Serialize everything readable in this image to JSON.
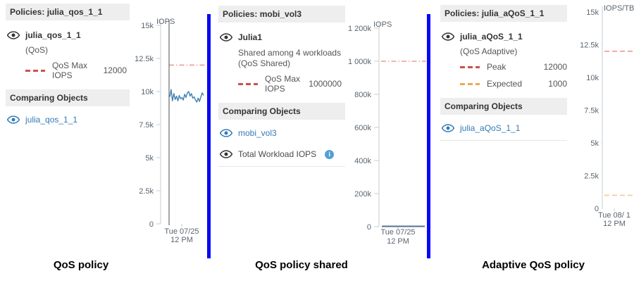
{
  "colors": {
    "band_bg": "#eeeeee",
    "link_blue": "#337ab7",
    "divider_blue": "#0707f5",
    "text_dark": "#333333",
    "text_body": "#555555",
    "axis_text": "#5a6570",
    "axis_line": "#c7ccd1",
    "legend_red": "#c9534e",
    "legend_orange": "#eda94f",
    "ref_red": "#eb9d8e",
    "ref_orange": "#f4c98f",
    "series_blue": "#4181b4",
    "series_flat": "#51718f",
    "marker_line": "#4d4d4d",
    "info_icon": "#53a0d4"
  },
  "panels": [
    {
      "header": "Policies: julia_qos_1_1",
      "workload_name": "julia_qos_1_1",
      "type_label": "(QoS)",
      "legend": [
        {
          "label": "QoS Max IOPS",
          "value": "12000"
        }
      ],
      "comparing_header": "Comparing Objects",
      "comparing_items": [
        {
          "label": "julia_qos_1_1"
        }
      ],
      "caption": "QoS policy"
    },
    {
      "header": "Policies: mobi_vol3",
      "workload_name": "Julia1",
      "shared_line1": "Shared among 4 workloads",
      "shared_line2": "(QoS Shared)",
      "legend": [
        {
          "label": "QoS Max IOPS",
          "value": "1000000"
        }
      ],
      "comparing_header": "Comparing Objects",
      "comparing_items": [
        {
          "label": "mobi_vol3"
        },
        {
          "label": "Total Workload IOPS"
        }
      ],
      "caption": "QoS policy shared"
    },
    {
      "header": "Policies: julia_aQoS_1_1",
      "workload_name": "julia_aQoS_1_1",
      "type_label": "(QoS Adaptive)",
      "legend": [
        {
          "label": "Peak",
          "value": "12000"
        },
        {
          "label": "Expected",
          "value": "1000"
        }
      ],
      "comparing_header": "Comparing Objects",
      "comparing_items": [
        {
          "label": "julia_aQoS_1_1"
        }
      ],
      "caption": "Adaptive QoS policy"
    }
  ],
  "chart_data": [
    {
      "type": "line",
      "unit": "IOPS",
      "ylim": [
        0,
        15000
      ],
      "yticks": [
        {
          "v": 15000,
          "label": "15k"
        },
        {
          "v": 12500,
          "label": "12.5k"
        },
        {
          "v": 10000,
          "label": "10k"
        },
        {
          "v": 7500,
          "label": "7.5k"
        },
        {
          "v": 5000,
          "label": "5k"
        },
        {
          "v": 2500,
          "label": "2.5k"
        },
        {
          "v": 0,
          "label": "0"
        }
      ],
      "x_axis_label": [
        "Tue 07/25",
        "12 PM"
      ],
      "reference_lines": [
        {
          "name": "QoS Max IOPS",
          "value": 12000,
          "style": "dash-dot",
          "color_key": "ref_red"
        }
      ],
      "time_marker": true,
      "series": [
        {
          "name": "julia_qos_1_1",
          "color_key": "series_blue",
          "values": [
            9600,
            10150,
            9300,
            9850,
            9400,
            9650,
            9300,
            9700,
            9450,
            9550,
            9350,
            9800,
            9550,
            9900,
            10000,
            9650,
            9850,
            9500,
            9600,
            9350,
            9200,
            9500,
            9250,
            9600,
            9900,
            9700
          ]
        }
      ]
    },
    {
      "type": "line",
      "unit": "IOPS",
      "ylim": [
        0,
        1200000
      ],
      "yticks": [
        {
          "v": 1200000,
          "label": "1 200k"
        },
        {
          "v": 1000000,
          "label": "1 000k"
        },
        {
          "v": 800000,
          "label": "800k"
        },
        {
          "v": 600000,
          "label": "600k"
        },
        {
          "v": 400000,
          "label": "400k"
        },
        {
          "v": 200000,
          "label": "200k"
        },
        {
          "v": 0,
          "label": "0"
        }
      ],
      "x_axis_label": [
        "Tue 07/25",
        "12 PM"
      ],
      "reference_lines": [
        {
          "name": "QoS Max IOPS",
          "value": 1000000,
          "style": "dash-dot",
          "color_key": "ref_red"
        }
      ],
      "time_marker": false,
      "series": [
        {
          "name": "Total Workload IOPS",
          "color_key": "series_flat",
          "values": [
            2000,
            2000,
            2000,
            2000,
            2000,
            2000,
            2000,
            2000,
            2000,
            2000
          ]
        }
      ]
    },
    {
      "type": "line",
      "unit": "IOPS/TB",
      "ylim": [
        0,
        15000
      ],
      "yticks": [
        {
          "v": 15000,
          "label": "15k"
        },
        {
          "v": 12500,
          "label": "12.5k"
        },
        {
          "v": 10000,
          "label": "10k"
        },
        {
          "v": 7500,
          "label": "7.5k"
        },
        {
          "v": 5000,
          "label": "5k"
        },
        {
          "v": 2500,
          "label": "2.5k"
        },
        {
          "v": 0,
          "label": "0"
        }
      ],
      "x_axis_label": [
        "Tue 08/ 1",
        "12 PM"
      ],
      "reference_lines": [
        {
          "name": "Peak",
          "value": 12000,
          "style": "dash",
          "color_key": "ref_red"
        },
        {
          "name": "Expected",
          "value": 1000,
          "style": "dash",
          "color_key": "ref_orange"
        }
      ],
      "time_marker": false,
      "series": []
    }
  ]
}
